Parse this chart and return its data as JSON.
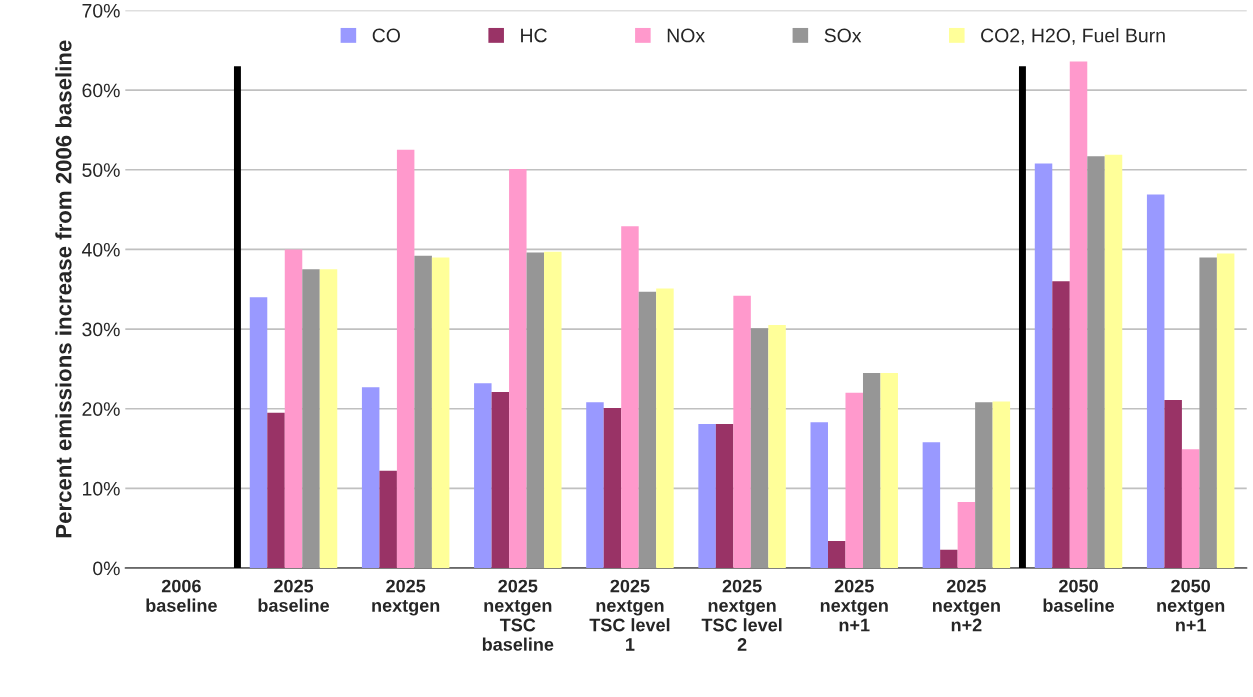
{
  "chart_data": {
    "type": "bar",
    "ylabel": "Percent emissions increase from 2006 baseline",
    "categories": [
      "2006\nbaseline",
      "2025\nbaseline",
      "2025\nnextgen",
      "2025\nnextgen\nTSC\nbaseline",
      "2025\nnextgen\nTSC level\n1",
      "2025\nnextgen\nTSC level\n2",
      "2025\nnextgen\nn+1",
      "2025\nnextgen\nn+2",
      "2050\nbaseline",
      "2050\nnextgen\nn+1"
    ],
    "series": [
      {
        "name": "CO",
        "color": "#9999ff",
        "values": [
          0,
          34,
          22.7,
          23.2,
          20.8,
          18.1,
          18.3,
          15.8,
          50.8,
          46.9
        ]
      },
      {
        "name": "HC",
        "color": "#993366",
        "values": [
          0,
          19.5,
          12.2,
          22.1,
          20.1,
          18.1,
          3.4,
          2.3,
          36,
          21.1
        ]
      },
      {
        "name": "NOx",
        "color": "#ff99cc",
        "values": [
          0,
          40,
          52.5,
          50.1,
          42.9,
          34.2,
          22,
          8.3,
          63.6,
          14.9
        ]
      },
      {
        "name": "SOx",
        "color": "#969696",
        "values": [
          0,
          37.5,
          39.2,
          39.6,
          34.7,
          30.1,
          24.5,
          20.8,
          51.7,
          39
        ]
      },
      {
        "name": "CO2, H2O, Fuel Burn",
        "color": "#ffff99",
        "values": [
          0,
          37.5,
          39,
          39.7,
          35.1,
          30.5,
          24.5,
          20.9,
          51.9,
          39.5
        ]
      }
    ],
    "ylim": [
      0,
      70
    ],
    "yticks": [
      {
        "value": 0,
        "label": "0%"
      },
      {
        "value": 10,
        "label": "10%"
      },
      {
        "value": 20,
        "label": "20%"
      },
      {
        "value": 30,
        "label": "30%"
      },
      {
        "value": 40,
        "label": "40%"
      },
      {
        "value": 50,
        "label": "50%"
      },
      {
        "value": 60,
        "label": "60%"
      },
      {
        "value": 70,
        "label": "70%"
      }
    ],
    "grid": "y",
    "legend": "top"
  }
}
